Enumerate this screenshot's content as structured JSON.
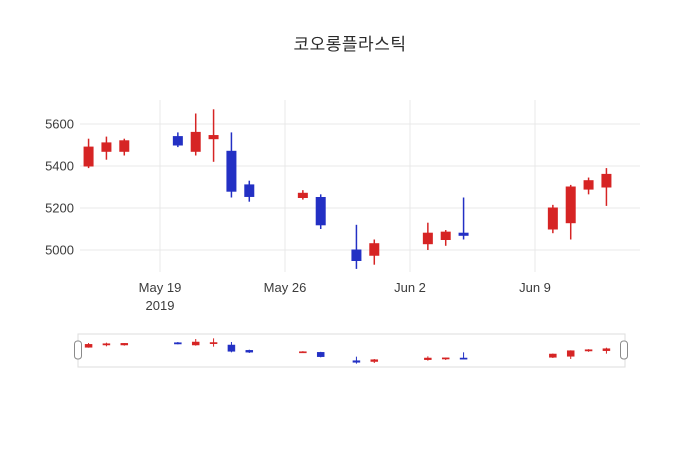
{
  "page": {
    "background": "#ffffff"
  },
  "chart_data": {
    "type": "candlestick",
    "title": "코오롱플라스틱",
    "increasing_color": "#d62424",
    "decreasing_color": "#2330c4",
    "axis_text_color": "#3c3c3c",
    "grid_color": "#e9e9e9",
    "rangeslider_border_color": "#dddddd",
    "rangeslider_handle_border": "#8a8a8a",
    "y_ticks": [
      5000,
      5200,
      5400,
      5600
    ],
    "x_ticks": [
      {
        "label": "May 19",
        "date": "2019-05-19"
      },
      {
        "label": "May 26",
        "date": "2019-05-26"
      },
      {
        "label": "Jun 2",
        "date": "2019-06-02"
      },
      {
        "label": "Jun 9",
        "date": "2019-06-09"
      }
    ],
    "year_label": "2019",
    "ylim": [
      4900,
      5700
    ],
    "ohlc": [
      {
        "date": "2019-05-15",
        "open": 5400,
        "high": 5530,
        "low": 5390,
        "close": 5490
      },
      {
        "date": "2019-05-16",
        "open": 5470,
        "high": 5540,
        "low": 5430,
        "close": 5510
      },
      {
        "date": "2019-05-17",
        "open": 5470,
        "high": 5530,
        "low": 5450,
        "close": 5520
      },
      {
        "date": "2019-05-20",
        "open": 5540,
        "high": 5560,
        "low": 5490,
        "close": 5500
      },
      {
        "date": "2019-05-21",
        "open": 5470,
        "high": 5650,
        "low": 5450,
        "close": 5560
      },
      {
        "date": "2019-05-22",
        "open": 5530,
        "high": 5670,
        "low": 5420,
        "close": 5545
      },
      {
        "date": "2019-05-23",
        "open": 5470,
        "high": 5560,
        "low": 5250,
        "close": 5280
      },
      {
        "date": "2019-05-24",
        "open": 5310,
        "high": 5330,
        "low": 5230,
        "close": 5255
      },
      {
        "date": "2019-05-27",
        "open": 5250,
        "high": 5285,
        "low": 5240,
        "close": 5270
      },
      {
        "date": "2019-05-28",
        "open": 5250,
        "high": 5265,
        "low": 5100,
        "close": 5120
      },
      {
        "date": "2019-05-30",
        "open": 5000,
        "high": 5120,
        "low": 4910,
        "close": 4950
      },
      {
        "date": "2019-05-31",
        "open": 4975,
        "high": 5050,
        "low": 4930,
        "close": 5030
      },
      {
        "date": "2019-06-03",
        "open": 5030,
        "high": 5130,
        "low": 5000,
        "close": 5080
      },
      {
        "date": "2019-06-04",
        "open": 5050,
        "high": 5095,
        "low": 5020,
        "close": 5085
      },
      {
        "date": "2019-06-05",
        "open": 5080,
        "high": 5250,
        "low": 5050,
        "close": 5070
      },
      {
        "date": "2019-06-10",
        "open": 5100,
        "high": 5215,
        "low": 5080,
        "close": 5200
      },
      {
        "date": "2019-06-11",
        "open": 5130,
        "high": 5310,
        "low": 5050,
        "close": 5300
      },
      {
        "date": "2019-06-12",
        "open": 5290,
        "high": 5345,
        "low": 5265,
        "close": 5330
      },
      {
        "date": "2019-06-13",
        "open": 5300,
        "high": 5390,
        "low": 5210,
        "close": 5360
      }
    ]
  }
}
